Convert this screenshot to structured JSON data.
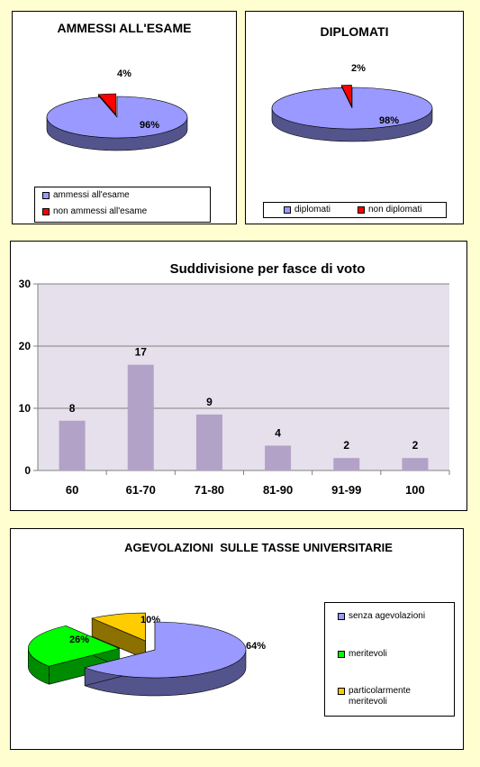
{
  "colors": {
    "page_bg": "#fffed0",
    "periwinkle": "#9999ff",
    "red": "#ff0000",
    "green": "#00ff00",
    "gold": "#ffcc00",
    "bar": "#b3a2c7",
    "plot_bg": "#e6e0ec"
  },
  "chart_data": [
    {
      "type": "pie",
      "title": "AMMESSI ALL'ESAME",
      "labels": [
        "ammessi all'esame",
        "non ammessi all'esame"
      ],
      "values": [
        96,
        4
      ],
      "value_labels": [
        "96%",
        "4%"
      ],
      "legend_position": "bottom"
    },
    {
      "type": "pie",
      "title": "DIPLOMATI",
      "labels": [
        "diplomati",
        "non diplomati"
      ],
      "values": [
        98,
        2
      ],
      "value_labels": [
        "98%",
        "2%"
      ],
      "legend_position": "bottom"
    },
    {
      "type": "bar",
      "title": "Suddivisione per fasce di voto",
      "categories": [
        "60",
        "61-70",
        "71-80",
        "81-90",
        "91-99",
        "100"
      ],
      "values": [
        8,
        17,
        9,
        4,
        2,
        2
      ],
      "ylim": [
        0,
        30
      ],
      "yticks": [
        "0",
        "10",
        "20",
        "30"
      ],
      "grid": true
    },
    {
      "type": "pie",
      "title": "AGEVOLAZIONI  SULLE TASSE UNIVERSITARIE",
      "labels": [
        "senza agevolazioni",
        "meritevoli",
        "particolarmente meritevoli"
      ],
      "values": [
        64,
        26,
        10
      ],
      "value_labels": [
        "64%",
        "26%",
        "10%"
      ],
      "legend_position": "right"
    }
  ]
}
